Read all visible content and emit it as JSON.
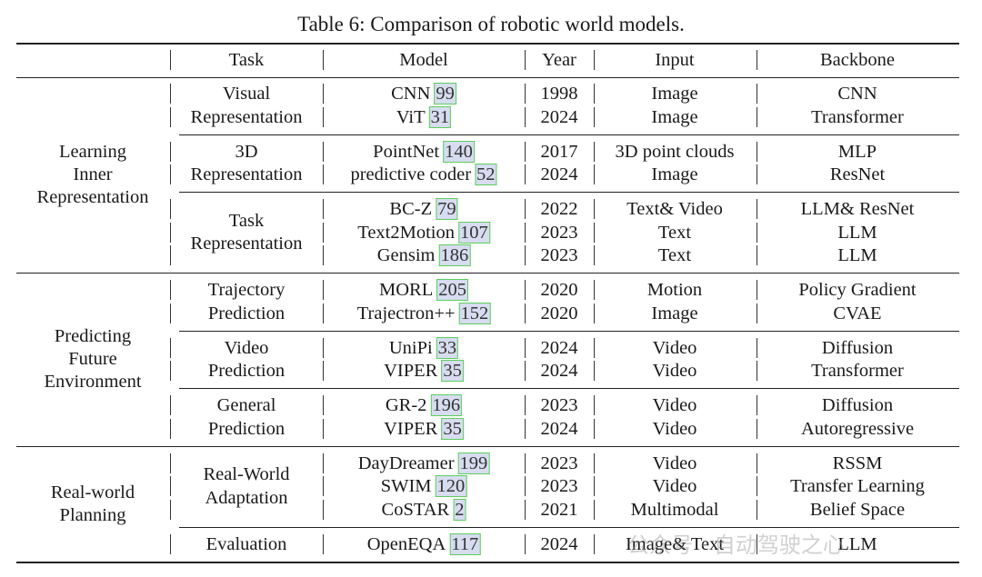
{
  "title": "Table 6: Comparison of robotic world models.",
  "headers": [
    "",
    "Task",
    "Model",
    "Year",
    "Input",
    "Backbone"
  ],
  "groups": [
    {
      "name": [
        "Learning",
        "Inner",
        "Representation"
      ],
      "subgroups": [
        {
          "task": [
            "Visual",
            "Representation"
          ],
          "rows": [
            {
              "model": "CNN",
              "cite": "99",
              "year": "1998",
              "input": "Image",
              "backbone": "CNN"
            },
            {
              "model": "ViT",
              "cite": "31",
              "year": "2024",
              "input": "Image",
              "backbone": "Transformer"
            }
          ]
        },
        {
          "task": [
            "3D",
            "Representation"
          ],
          "rows": [
            {
              "model": "PointNet",
              "cite": "140",
              "year": "2017",
              "input": "3D point clouds",
              "backbone": "MLP"
            },
            {
              "model": "predictive coder",
              "cite": "52",
              "year": "2024",
              "input": "Image",
              "backbone": "ResNet"
            }
          ]
        },
        {
          "task": [
            "Task",
            "Representation"
          ],
          "rows": [
            {
              "model": "BC-Z",
              "cite": "79",
              "year": "2022",
              "input": "Text& Video",
              "backbone": "LLM& ResNet"
            },
            {
              "model": "Text2Motion",
              "cite": "107",
              "year": "2023",
              "input": "Text",
              "backbone": "LLM"
            },
            {
              "model": "Gensim",
              "cite": "186",
              "year": "2023",
              "input": "Text",
              "backbone": "LLM"
            }
          ]
        }
      ]
    },
    {
      "name": [
        "Predicting",
        "Future",
        "Environment"
      ],
      "subgroups": [
        {
          "task": [
            "Trajectory",
            "Prediction"
          ],
          "rows": [
            {
              "model": "MORL",
              "cite": "205",
              "year": "2020",
              "input": "Motion",
              "backbone": "Policy Gradient"
            },
            {
              "model": "Trajectron++",
              "cite": "152",
              "year": "2020",
              "input": "Image",
              "backbone": "CVAE"
            }
          ]
        },
        {
          "task": [
            "Video",
            "Prediction"
          ],
          "rows": [
            {
              "model": "UniPi",
              "cite": "33",
              "year": "2024",
              "input": "Video",
              "backbone": "Diffusion"
            },
            {
              "model": "VIPER",
              "cite": "35",
              "year": "2024",
              "input": "Video",
              "backbone": "Transformer"
            }
          ]
        },
        {
          "task": [
            "General",
            "Prediction"
          ],
          "rows": [
            {
              "model": "GR-2",
              "cite": "196",
              "year": "2023",
              "input": "Video",
              "backbone": "Diffusion"
            },
            {
              "model": "VIPER",
              "cite": "35",
              "year": "2024",
              "input": "Video",
              "backbone": "Autoregressive"
            }
          ]
        }
      ]
    },
    {
      "name": [
        "Real-world",
        "Planning"
      ],
      "subgroups": [
        {
          "task": [
            "Real-World",
            "Adaptation"
          ],
          "rows": [
            {
              "model": "DayDreamer",
              "cite": "199",
              "year": "2023",
              "input": "Video",
              "backbone": "RSSM"
            },
            {
              "model": "SWIM",
              "cite": "120",
              "year": "2023",
              "input": "Video",
              "backbone": "Transfer Learning"
            },
            {
              "model": "CoSTAR",
              "cite": "2",
              "year": "2021",
              "input": "Multimodal",
              "backbone": "Belief Space"
            }
          ]
        },
        {
          "task": [
            "Evaluation"
          ],
          "rows": [
            {
              "model": "OpenEQA",
              "cite": "117",
              "year": "2024",
              "input": "Image& Text",
              "backbone": "LLM"
            }
          ]
        }
      ]
    }
  ],
  "watermark": "公众号 · 自动驾驶之心"
}
